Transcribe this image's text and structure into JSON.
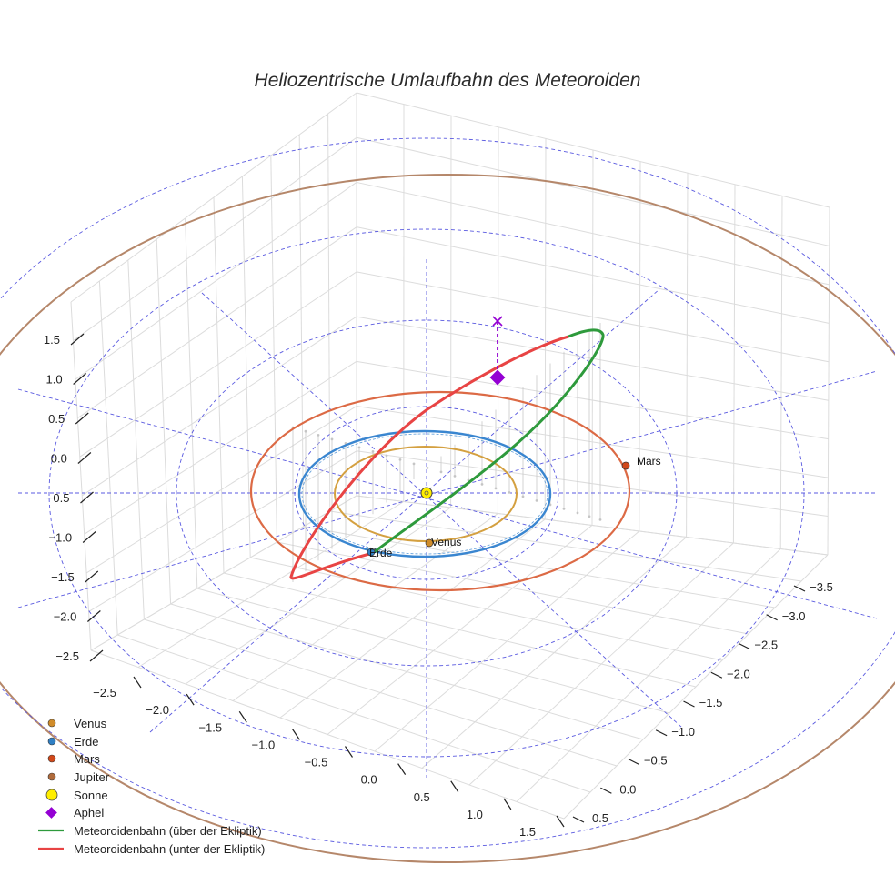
{
  "chart_data": {
    "type": "line3d",
    "title": "Heliozentrische Umlaufbahn des Meteoroiden",
    "axes": {
      "z_ticks": [
        "1.5",
        "1.0",
        "0.5",
        "0.0",
        "−0.5",
        "−1.0",
        "−1.5",
        "−2.0",
        "−2.5"
      ],
      "x_ticks": [
        "−2.5",
        "−2.0",
        "−1.5",
        "−1.0",
        "−0.5",
        "0.0",
        "0.5",
        "1.0",
        "1.5"
      ],
      "y_ticks": [
        "−3.5",
        "−3.0",
        "−2.5",
        "−2.0",
        "−1.5",
        "−1.0",
        "−0.5",
        "0.0",
        "0.5"
      ],
      "grid": true
    },
    "planets": [
      {
        "name": "Venus",
        "label": "Venus",
        "color": "#d08c2a",
        "orbit_color": "#d4a040"
      },
      {
        "name": "Erde",
        "label": "Erde",
        "color": "#2f7fc4",
        "orbit_color": "#3a86d0"
      },
      {
        "name": "Mars",
        "label": "Mars",
        "color": "#d0481a",
        "orbit_color": "#dc6a45"
      },
      {
        "name": "Jupiter",
        "label": "",
        "color": "#b06b3c",
        "orbit_color": "#b5876a"
      }
    ],
    "sun": {
      "name": "Sonne",
      "color": "#ffee00"
    },
    "aphel": {
      "name": "Aphel",
      "color": "#9400d3"
    },
    "series": [
      {
        "name": "Meteoroidenbahn (über der Ekliptik)",
        "color": "#2e9a3c"
      },
      {
        "name": "Meteoroidenbahn (unter der Ekliptik)",
        "color": "#e84444"
      }
    ],
    "legend": {
      "position": "bottom-left",
      "entries": [
        "Venus",
        "Erde",
        "Mars",
        "Jupiter",
        "Sonne",
        "Aphel",
        "Meteoroidenbahn (über der Ekliptik)",
        "Meteoroidenbahn (unter der Ekliptik)"
      ]
    }
  }
}
